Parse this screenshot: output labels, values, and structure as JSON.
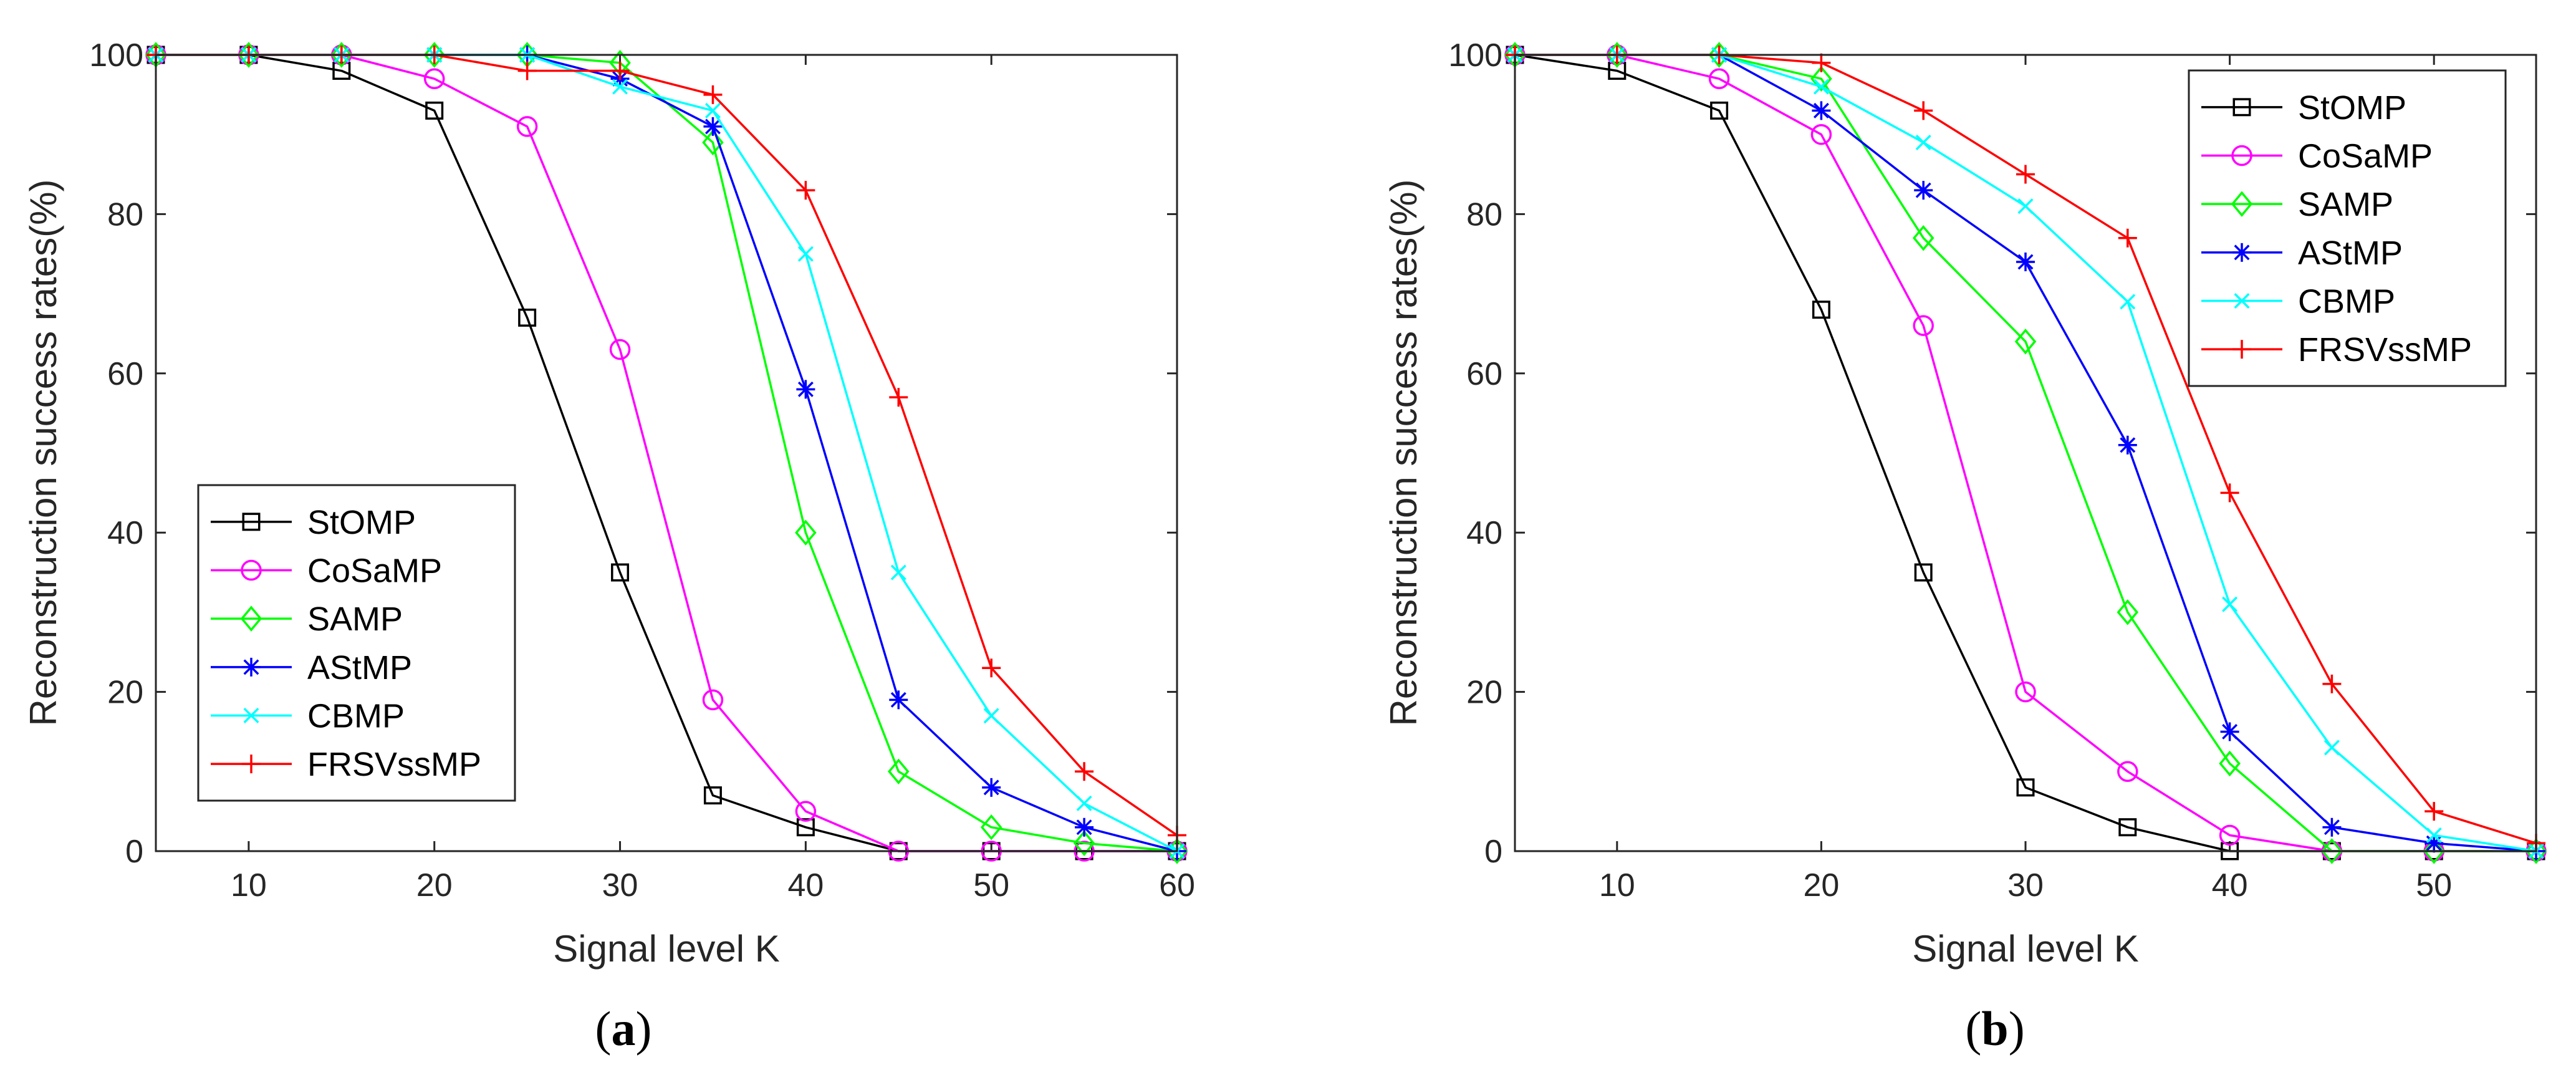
{
  "chart_data": [
    {
      "id": "a",
      "type": "line",
      "caption": {
        "open": "(",
        "letter": "a",
        "close": ")"
      },
      "xlabel": "Signal level K",
      "ylabel": "Reconstruction success rates(%)",
      "xlim": [
        5,
        60
      ],
      "ylim": [
        0,
        100
      ],
      "xticks": [
        10,
        20,
        30,
        40,
        50,
        60
      ],
      "yticks": [
        0,
        20,
        40,
        60,
        80,
        100
      ],
      "legend_position": "lower-left",
      "x": [
        5,
        10,
        15,
        20,
        25,
        30,
        35,
        40,
        45,
        50,
        55,
        60
      ],
      "series": [
        {
          "name": "StOMP",
          "color": "#000000",
          "marker": "square",
          "values": [
            100,
            100,
            98,
            93,
            67,
            35,
            7,
            3,
            0,
            0,
            0,
            0
          ]
        },
        {
          "name": "CoSaMP",
          "color": "#ff00ff",
          "marker": "circle",
          "values": [
            100,
            100,
            100,
            97,
            91,
            63,
            19,
            5,
            0,
            0,
            0,
            0
          ]
        },
        {
          "name": "SAMP",
          "color": "#00ff00",
          "marker": "diamond",
          "values": [
            100,
            100,
            100,
            100,
            100,
            99,
            89,
            40,
            10,
            3,
            1,
            0
          ]
        },
        {
          "name": "AStMP",
          "color": "#0000ff",
          "marker": "asterisk",
          "values": [
            100,
            100,
            100,
            100,
            100,
            97,
            91,
            58,
            19,
            8,
            3,
            0
          ]
        },
        {
          "name": "CBMP",
          "color": "#00ffff",
          "marker": "cross",
          "values": [
            100,
            100,
            100,
            100,
            100,
            96,
            93,
            75,
            35,
            17,
            6,
            0
          ]
        },
        {
          "name": "FRSVssMP",
          "color": "#ff0000",
          "marker": "plus",
          "values": [
            100,
            100,
            100,
            100,
            98,
            98,
            95,
            83,
            57,
            23,
            10,
            2
          ]
        }
      ]
    },
    {
      "id": "b",
      "type": "line",
      "caption": {
        "open": "(",
        "letter": "b",
        "close": ")"
      },
      "xlabel": "Signal level K",
      "ylabel": "Reconstruction success rates(%)",
      "xlim": [
        5,
        55
      ],
      "ylim": [
        0,
        100
      ],
      "xticks": [
        10,
        20,
        30,
        40,
        50
      ],
      "yticks": [
        0,
        20,
        40,
        60,
        80,
        100
      ],
      "legend_position": "upper-right",
      "x": [
        5,
        10,
        15,
        20,
        25,
        30,
        35,
        40,
        45,
        50,
        55
      ],
      "series": [
        {
          "name": "StOMP",
          "color": "#000000",
          "marker": "square",
          "values": [
            100,
            98,
            93,
            68,
            35,
            8,
            3,
            0,
            0,
            0,
            0
          ]
        },
        {
          "name": "CoSaMP",
          "color": "#ff00ff",
          "marker": "circle",
          "values": [
            100,
            100,
            97,
            90,
            66,
            20,
            10,
            2,
            0,
            0,
            0
          ]
        },
        {
          "name": "SAMP",
          "color": "#00ff00",
          "marker": "diamond",
          "values": [
            100,
            100,
            100,
            97,
            77,
            64,
            30,
            11,
            0,
            0,
            0
          ]
        },
        {
          "name": "AStMP",
          "color": "#0000ff",
          "marker": "asterisk",
          "values": [
            100,
            100,
            100,
            93,
            83,
            74,
            51,
            15,
            3,
            1,
            0
          ]
        },
        {
          "name": "CBMP",
          "color": "#00ffff",
          "marker": "cross",
          "values": [
            100,
            100,
            100,
            96,
            89,
            81,
            69,
            31,
            13,
            2,
            0
          ]
        },
        {
          "name": "FRSVssMP",
          "color": "#ff0000",
          "marker": "plus",
          "values": [
            100,
            100,
            100,
            99,
            93,
            85,
            77,
            45,
            21,
            5,
            1
          ]
        }
      ]
    }
  ]
}
